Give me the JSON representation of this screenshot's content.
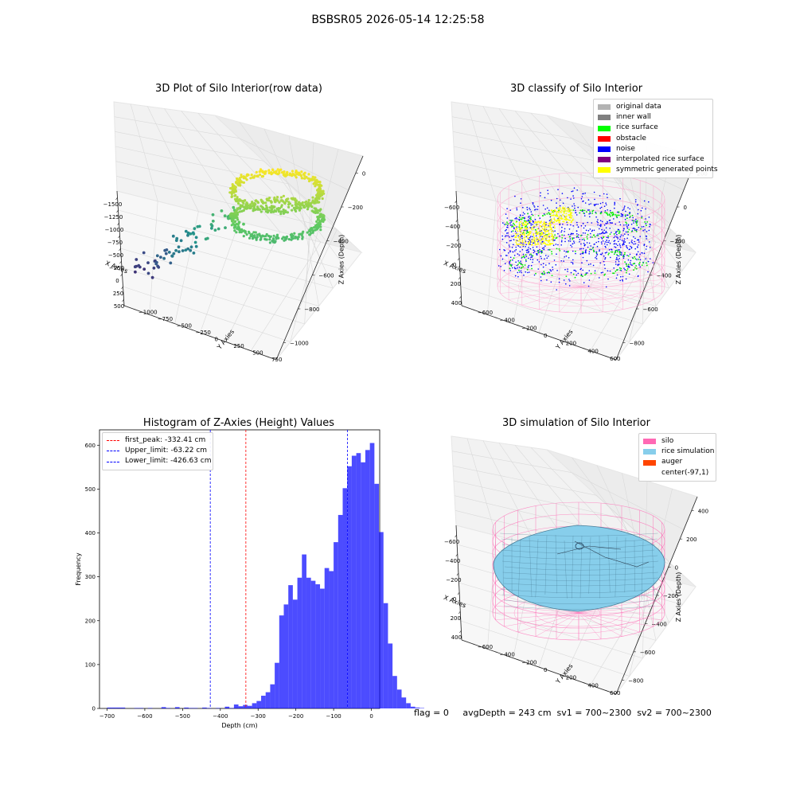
{
  "suptitle": "BSBSR05 2026-05-14 12:25:58",
  "footer": "flag = 0     avgDepth = 243 cm  sv1 = 700~2300  sv2 = 700~2300",
  "chart_data": [
    {
      "type": "scatter3d",
      "title": "3D Plot of Silo Interior(row data)",
      "xlabel": "X Axies",
      "ylabel": "Y Axies",
      "zlabel": "Z Axies (Depth)",
      "xticks": [
        "−1500",
        "−1250",
        "−1000",
        "−750",
        "−500",
        "−250",
        "0",
        "250",
        "500"
      ],
      "yticks": [
        "−1000",
        "−750",
        "−500",
        "−250",
        "0",
        "250",
        "500",
        "750"
      ],
      "zticks": [
        "0",
        "−200",
        "−400",
        "−600",
        "−800",
        "−1000"
      ],
      "colormap": "viridis"
    },
    {
      "type": "scatter3d",
      "title": "3D classify of Silo Interior",
      "xlabel": "X Axies",
      "ylabel": "Y Axies",
      "zlabel": "Z Axies (Depth)",
      "xticks": [
        "−600",
        "−400",
        "−200",
        "0",
        "200",
        "400"
      ],
      "yticks": [
        "−600",
        "−400",
        "−200",
        "0",
        "200",
        "400",
        "600"
      ],
      "zticks": [
        "200",
        "0",
        "−200",
        "−400",
        "−600",
        "−800"
      ],
      "legend": [
        {
          "label": "original data",
          "color": "#b3b3b3"
        },
        {
          "label": "inner wall",
          "color": "#808080"
        },
        {
          "label": "rice surface",
          "color": "#00ff00"
        },
        {
          "label": "obstacle",
          "color": "#ff0000"
        },
        {
          "label": "noise",
          "color": "#0000ff"
        },
        {
          "label": "interpolated rice surface",
          "color": "#800080"
        },
        {
          "label": "symmetric generated points",
          "color": "#ffff00"
        }
      ]
    },
    {
      "type": "bar",
      "title": "Histogram of Z-Axies (Height) Values",
      "xlabel": "Depth (cm)",
      "ylabel": "Frequency",
      "xlim": [
        -720,
        22
      ],
      "ylim": [
        0,
        635
      ],
      "xticks": [
        -700,
        -600,
        -500,
        -400,
        -300,
        -200,
        -100,
        0
      ],
      "yticks": [
        0,
        100,
        200,
        300,
        400,
        500,
        600
      ],
      "bin_start": -700,
      "bin_width": 12,
      "values": [
        2,
        2,
        2,
        2,
        0,
        0,
        1,
        1,
        0,
        1,
        0,
        0,
        3,
        1,
        0,
        3,
        0,
        2,
        1,
        1,
        0,
        2,
        1,
        0,
        1,
        0,
        4,
        1,
        9,
        5,
        8,
        6,
        12,
        17,
        29,
        37,
        55,
        104,
        212,
        237,
        281,
        248,
        298,
        351,
        298,
        291,
        283,
        273,
        320,
        313,
        379,
        441,
        502,
        552,
        576,
        582,
        561,
        589,
        605,
        512,
        402,
        240,
        148,
        74,
        43,
        25,
        12,
        4,
        2,
        1,
        0,
        0,
        0
      ],
      "bar_color": "#0000ff",
      "bar_alpha": 0.7,
      "vlines": [
        {
          "label": "first_peak: -332.41 cm",
          "x": -332.41,
          "color": "#ff0000"
        },
        {
          "label": "Upper_limit: -63.22 cm",
          "x": -63.22,
          "color": "#0000ff"
        },
        {
          "label": "Lower_limit: -426.63 cm",
          "x": -426.63,
          "color": "#0000ff"
        }
      ]
    },
    {
      "type": "surface3d",
      "title": "3D simulation of Silo Interior",
      "xlabel": "X Axies",
      "ylabel": "Y Axies",
      "zlabel": "Z Axies (Depth)",
      "xticks": [
        "−600",
        "−400",
        "−200",
        "0",
        "200",
        "400"
      ],
      "yticks": [
        "−600",
        "−400",
        "−200",
        "0",
        "200",
        "400",
        "600"
      ],
      "zticks": [
        "400",
        "200",
        "0",
        "−200",
        "−400",
        "−600",
        "−800"
      ],
      "legend": [
        {
          "label": "silo",
          "color": "#ff69b4"
        },
        {
          "label": "rice simulation",
          "color": "#87ceeb"
        },
        {
          "label": "auger",
          "color": "#ff4500"
        },
        {
          "label": "center(-97,1)",
          "color": ""
        }
      ]
    }
  ]
}
